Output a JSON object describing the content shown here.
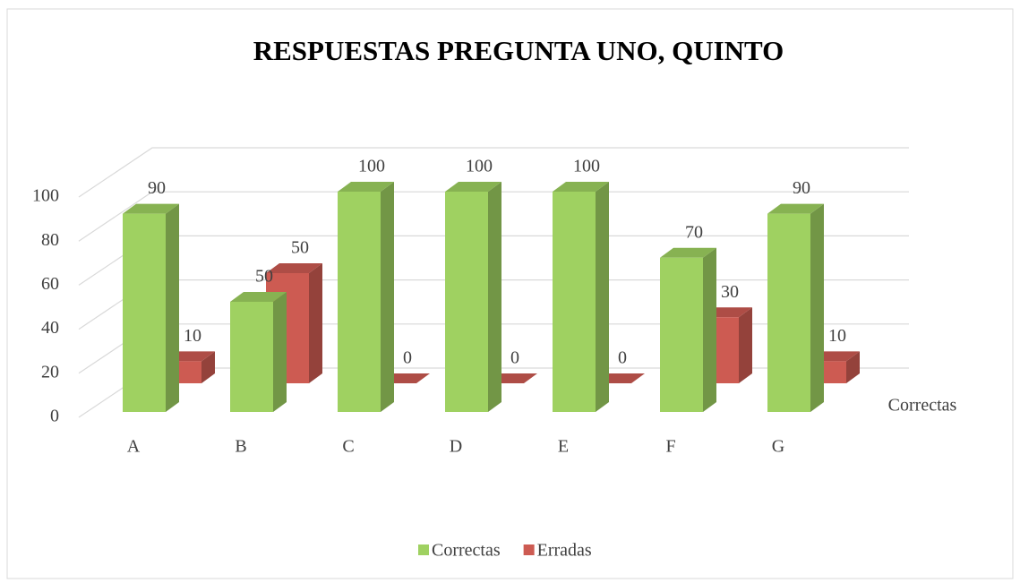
{
  "chart_data": {
    "type": "bar3d",
    "title": "RESPUESTAS PREGUNTA UNO, QUINTO",
    "categories": [
      "A",
      "B",
      "C",
      "D",
      "E",
      "F",
      "G"
    ],
    "series": [
      {
        "name": "Correctas",
        "color": "#9fd161",
        "values": [
          90,
          50,
          100,
          100,
          100,
          70,
          90
        ]
      },
      {
        "name": "Erradas",
        "color": "#cd5b52",
        "values": [
          10,
          50,
          0,
          0,
          0,
          30,
          10
        ]
      }
    ],
    "ylim": [
      0,
      100
    ],
    "yticks": [
      0,
      20,
      40,
      60,
      80,
      100
    ],
    "grid": true,
    "legend": "bottom"
  }
}
